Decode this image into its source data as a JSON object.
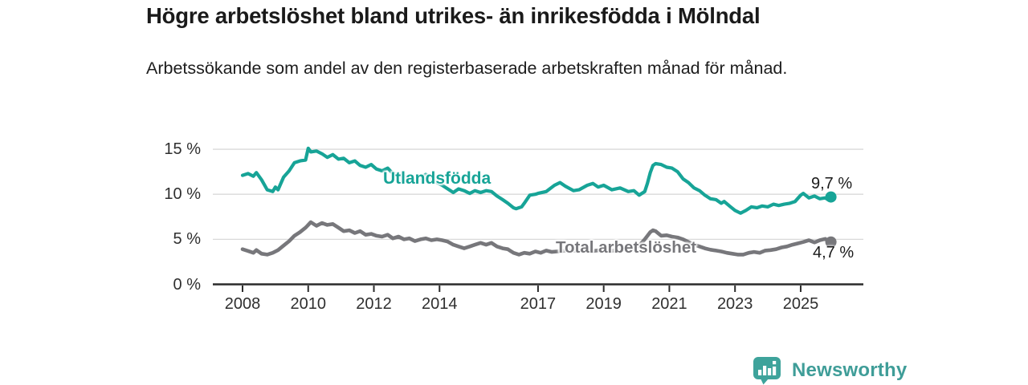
{
  "chart_data": {
    "type": "line",
    "title": "Högre arbetslöshet bland utrikes- än inrikesfödda i Mölndal",
    "subtitle": "Arbetssökande som andel av den registerbaserade arbetskraften månad för månad.",
    "xlabel": "",
    "ylabel": "",
    "grid": "horizontal",
    "legend_position": "inline-labels",
    "xlim": [
      2007.1,
      2026.9
    ],
    "ylim": [
      0,
      16.5
    ],
    "x_ticks": [
      2008,
      2010,
      2012,
      2014,
      2017,
      2019,
      2021,
      2023,
      2025
    ],
    "y_ticks": [
      {
        "value": 0,
        "label": "0 %"
      },
      {
        "value": 5,
        "label": "5 %"
      },
      {
        "value": 10,
        "label": "10 %"
      },
      {
        "value": 15,
        "label": "15 %"
      }
    ],
    "series": [
      {
        "name": "Utlandsfödda",
        "color": "#17a497",
        "end_label": "9,7 %",
        "end_value": 9.7,
        "points": [
          [
            2008.0,
            12.1
          ],
          [
            2008.17,
            12.3
          ],
          [
            2008.33,
            12.0
          ],
          [
            2008.42,
            12.4
          ],
          [
            2008.58,
            11.6
          ],
          [
            2008.75,
            10.5
          ],
          [
            2008.92,
            10.3
          ],
          [
            2009.0,
            10.8
          ],
          [
            2009.08,
            10.5
          ],
          [
            2009.25,
            11.9
          ],
          [
            2009.42,
            12.6
          ],
          [
            2009.58,
            13.5
          ],
          [
            2009.75,
            13.7
          ],
          [
            2009.92,
            13.8
          ],
          [
            2010.0,
            15.1
          ],
          [
            2010.08,
            14.7
          ],
          [
            2010.25,
            14.8
          ],
          [
            2010.42,
            14.5
          ],
          [
            2010.58,
            14.1
          ],
          [
            2010.75,
            14.4
          ],
          [
            2010.92,
            13.9
          ],
          [
            2011.08,
            14.0
          ],
          [
            2011.25,
            13.5
          ],
          [
            2011.42,
            13.7
          ],
          [
            2011.58,
            13.2
          ],
          [
            2011.75,
            13.0
          ],
          [
            2011.92,
            13.3
          ],
          [
            2012.08,
            12.8
          ],
          [
            2012.25,
            12.6
          ],
          [
            2012.42,
            12.9
          ],
          [
            2012.58,
            12.3
          ],
          [
            2012.75,
            12.2
          ],
          [
            2012.92,
            12.0
          ],
          [
            2013.08,
            11.7
          ],
          [
            2013.25,
            11.4
          ],
          [
            2013.42,
            11.8
          ],
          [
            2013.58,
            12.2
          ],
          [
            2013.75,
            11.8
          ],
          [
            2013.92,
            11.3
          ],
          [
            2014.08,
            11.0
          ],
          [
            2014.25,
            10.6
          ],
          [
            2014.42,
            10.2
          ],
          [
            2014.58,
            10.6
          ],
          [
            2014.75,
            10.4
          ],
          [
            2014.92,
            10.1
          ],
          [
            2015.08,
            10.4
          ],
          [
            2015.25,
            10.2
          ],
          [
            2015.42,
            10.4
          ],
          [
            2015.58,
            10.3
          ],
          [
            2015.75,
            9.8
          ],
          [
            2015.92,
            9.4
          ],
          [
            2016.08,
            9.0
          ],
          [
            2016.25,
            8.5
          ],
          [
            2016.33,
            8.4
          ],
          [
            2016.5,
            8.6
          ],
          [
            2016.58,
            9.0
          ],
          [
            2016.75,
            9.9
          ],
          [
            2016.92,
            10.0
          ],
          [
            2017.0,
            10.1
          ],
          [
            2017.25,
            10.3
          ],
          [
            2017.5,
            11.0
          ],
          [
            2017.67,
            11.3
          ],
          [
            2017.83,
            10.9
          ],
          [
            2018.08,
            10.4
          ],
          [
            2018.25,
            10.5
          ],
          [
            2018.5,
            11.0
          ],
          [
            2018.67,
            11.2
          ],
          [
            2018.83,
            10.8
          ],
          [
            2019.0,
            11.0
          ],
          [
            2019.25,
            10.5
          ],
          [
            2019.5,
            10.7
          ],
          [
            2019.75,
            10.3
          ],
          [
            2019.92,
            10.4
          ],
          [
            2020.08,
            9.9
          ],
          [
            2020.25,
            10.3
          ],
          [
            2020.33,
            11.2
          ],
          [
            2020.42,
            12.4
          ],
          [
            2020.5,
            13.2
          ],
          [
            2020.58,
            13.4
          ],
          [
            2020.75,
            13.3
          ],
          [
            2020.92,
            13.0
          ],
          [
            2021.08,
            12.9
          ],
          [
            2021.25,
            12.5
          ],
          [
            2021.42,
            11.7
          ],
          [
            2021.58,
            11.3
          ],
          [
            2021.75,
            10.7
          ],
          [
            2021.92,
            10.4
          ],
          [
            2022.08,
            9.9
          ],
          [
            2022.25,
            9.5
          ],
          [
            2022.42,
            9.4
          ],
          [
            2022.58,
            9.0
          ],
          [
            2022.67,
            9.2
          ],
          [
            2022.83,
            8.7
          ],
          [
            2023.0,
            8.2
          ],
          [
            2023.17,
            7.9
          ],
          [
            2023.33,
            8.2
          ],
          [
            2023.5,
            8.6
          ],
          [
            2023.67,
            8.5
          ],
          [
            2023.83,
            8.7
          ],
          [
            2024.0,
            8.6
          ],
          [
            2024.17,
            8.9
          ],
          [
            2024.33,
            8.75
          ],
          [
            2024.5,
            8.9
          ],
          [
            2024.67,
            9.0
          ],
          [
            2024.83,
            9.2
          ],
          [
            2025.0,
            9.9
          ],
          [
            2025.08,
            10.1
          ],
          [
            2025.25,
            9.6
          ],
          [
            2025.42,
            9.8
          ],
          [
            2025.58,
            9.5
          ],
          [
            2025.75,
            9.6
          ],
          [
            2025.83,
            9.4
          ],
          [
            2025.92,
            9.7
          ]
        ]
      },
      {
        "name": "Total arbetslöshet",
        "color": "#77777b",
        "end_label": "4,7 %",
        "end_value": 4.7,
        "points": [
          [
            2008.0,
            3.9
          ],
          [
            2008.17,
            3.7
          ],
          [
            2008.33,
            3.5
          ],
          [
            2008.42,
            3.8
          ],
          [
            2008.58,
            3.4
          ],
          [
            2008.75,
            3.3
          ],
          [
            2008.92,
            3.5
          ],
          [
            2009.08,
            3.8
          ],
          [
            2009.25,
            4.3
          ],
          [
            2009.42,
            4.8
          ],
          [
            2009.58,
            5.4
          ],
          [
            2009.75,
            5.8
          ],
          [
            2009.92,
            6.3
          ],
          [
            2010.0,
            6.6
          ],
          [
            2010.08,
            6.9
          ],
          [
            2010.25,
            6.5
          ],
          [
            2010.42,
            6.8
          ],
          [
            2010.58,
            6.6
          ],
          [
            2010.75,
            6.7
          ],
          [
            2010.92,
            6.3
          ],
          [
            2011.08,
            5.9
          ],
          [
            2011.25,
            6.0
          ],
          [
            2011.42,
            5.7
          ],
          [
            2011.58,
            5.9
          ],
          [
            2011.75,
            5.5
          ],
          [
            2011.92,
            5.6
          ],
          [
            2012.08,
            5.4
          ],
          [
            2012.25,
            5.3
          ],
          [
            2012.42,
            5.5
          ],
          [
            2012.58,
            5.1
          ],
          [
            2012.75,
            5.3
          ],
          [
            2012.92,
            5.0
          ],
          [
            2013.08,
            5.1
          ],
          [
            2013.25,
            4.8
          ],
          [
            2013.42,
            5.0
          ],
          [
            2013.58,
            5.1
          ],
          [
            2013.75,
            4.9
          ],
          [
            2013.92,
            5.0
          ],
          [
            2014.08,
            4.9
          ],
          [
            2014.25,
            4.75
          ],
          [
            2014.42,
            4.4
          ],
          [
            2014.58,
            4.2
          ],
          [
            2014.75,
            4.0
          ],
          [
            2014.92,
            4.2
          ],
          [
            2015.08,
            4.4
          ],
          [
            2015.25,
            4.6
          ],
          [
            2015.42,
            4.4
          ],
          [
            2015.58,
            4.6
          ],
          [
            2015.75,
            4.2
          ],
          [
            2015.92,
            4.0
          ],
          [
            2016.08,
            3.9
          ],
          [
            2016.25,
            3.5
          ],
          [
            2016.42,
            3.3
          ],
          [
            2016.58,
            3.5
          ],
          [
            2016.75,
            3.4
          ],
          [
            2016.92,
            3.65
          ],
          [
            2017.08,
            3.5
          ],
          [
            2017.25,
            3.75
          ],
          [
            2017.42,
            3.6
          ],
          [
            2017.58,
            3.65
          ],
          [
            2017.75,
            3.7
          ],
          [
            2017.92,
            3.8
          ],
          [
            2018.17,
            3.7
          ],
          [
            2018.42,
            3.8
          ],
          [
            2018.67,
            3.7
          ],
          [
            2018.92,
            3.8
          ],
          [
            2019.17,
            3.7
          ],
          [
            2019.42,
            3.8
          ],
          [
            2019.67,
            3.9
          ],
          [
            2019.92,
            4.0
          ],
          [
            2020.08,
            4.3
          ],
          [
            2020.25,
            5.0
          ],
          [
            2020.42,
            5.8
          ],
          [
            2020.5,
            6.0
          ],
          [
            2020.58,
            5.9
          ],
          [
            2020.75,
            5.4
          ],
          [
            2020.92,
            5.45
          ],
          [
            2021.08,
            5.3
          ],
          [
            2021.25,
            5.2
          ],
          [
            2021.42,
            5.0
          ],
          [
            2021.58,
            4.7
          ],
          [
            2021.75,
            4.4
          ],
          [
            2021.92,
            4.2
          ],
          [
            2022.08,
            4.0
          ],
          [
            2022.25,
            3.85
          ],
          [
            2022.42,
            3.75
          ],
          [
            2022.58,
            3.65
          ],
          [
            2022.75,
            3.5
          ],
          [
            2022.92,
            3.4
          ],
          [
            2023.08,
            3.3
          ],
          [
            2023.25,
            3.3
          ],
          [
            2023.42,
            3.5
          ],
          [
            2023.58,
            3.6
          ],
          [
            2023.75,
            3.5
          ],
          [
            2023.92,
            3.75
          ],
          [
            2024.08,
            3.8
          ],
          [
            2024.25,
            3.9
          ],
          [
            2024.42,
            4.1
          ],
          [
            2024.58,
            4.2
          ],
          [
            2024.75,
            4.4
          ],
          [
            2024.92,
            4.55
          ],
          [
            2025.08,
            4.7
          ],
          [
            2025.25,
            4.9
          ],
          [
            2025.42,
            4.65
          ],
          [
            2025.58,
            4.9
          ],
          [
            2025.75,
            5.05
          ],
          [
            2025.83,
            4.8
          ],
          [
            2025.92,
            4.7
          ]
        ]
      }
    ]
  },
  "footer": {
    "brand": "Newsworthy"
  },
  "colors": {
    "accent_teal": "#17a497",
    "series_gray": "#77777b",
    "gridline": "#d9d9d9",
    "axis": "#2b2b2b",
    "logo_teal": "#3ea39b",
    "text_dark": "#1a1a1a"
  }
}
